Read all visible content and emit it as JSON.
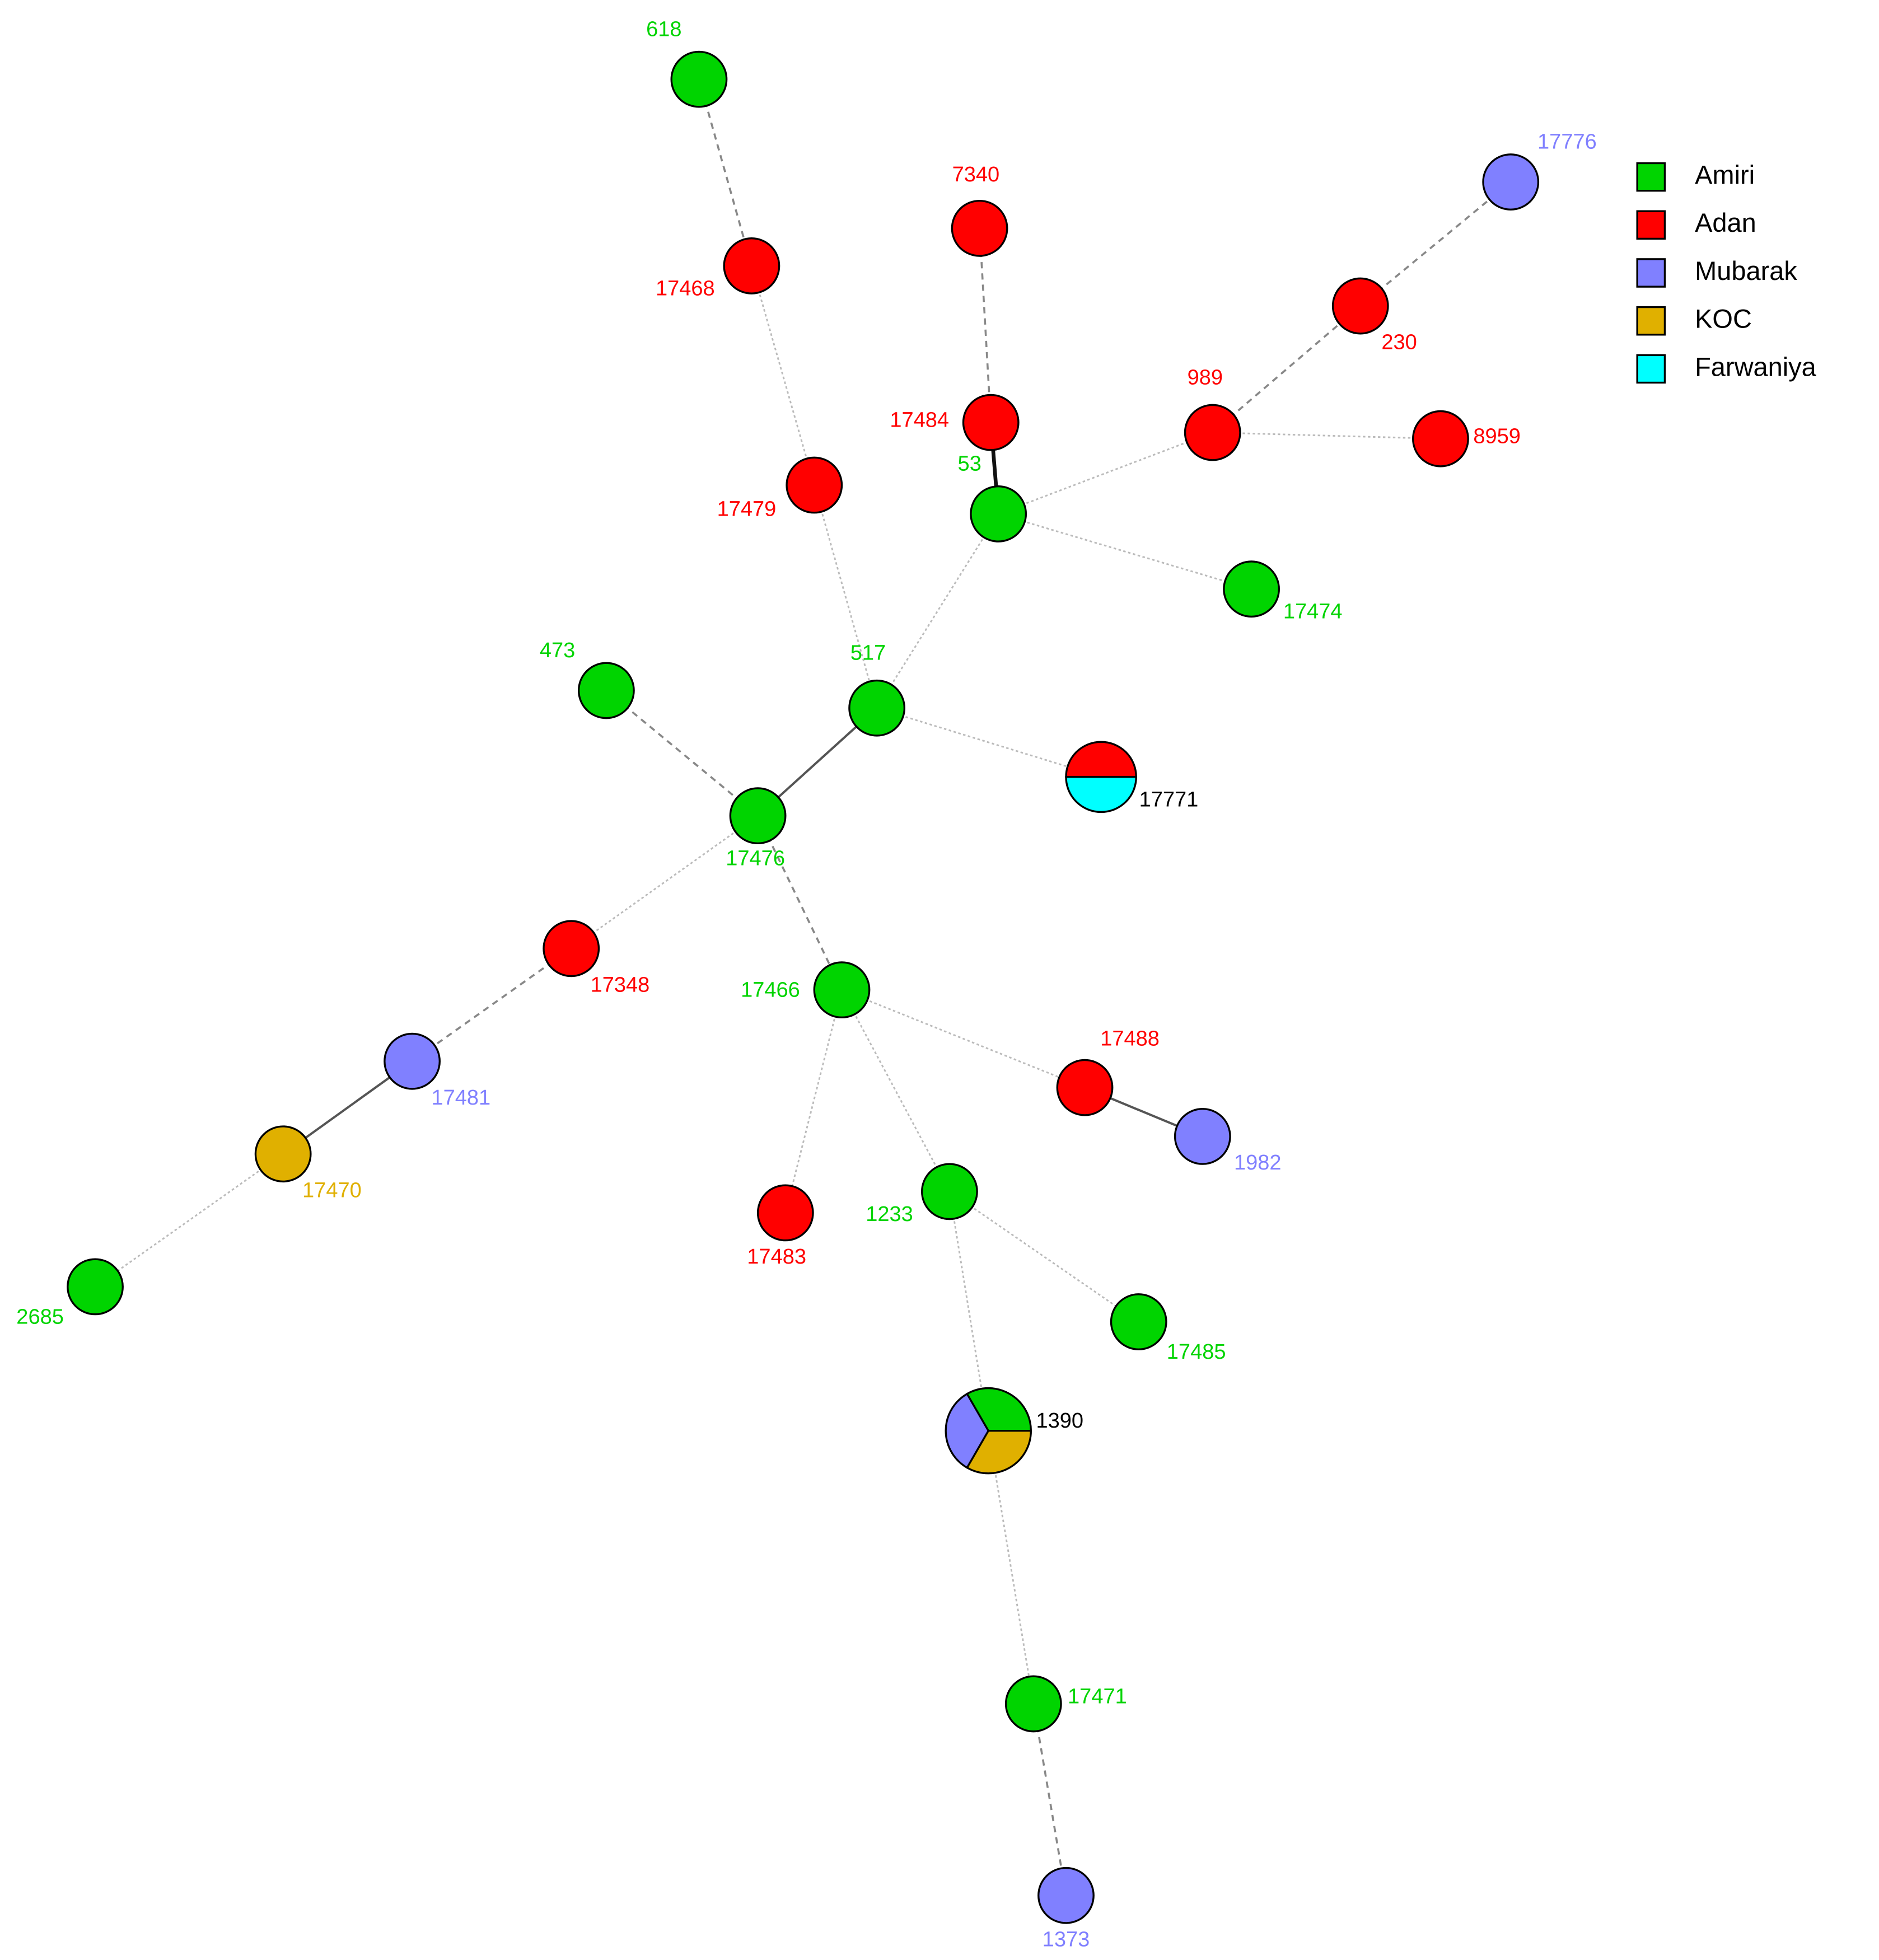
{
  "legend": [
    {
      "label": "Amiri",
      "color": "#00d400"
    },
    {
      "label": "Adan",
      "color": "#ff0000"
    },
    {
      "label": "Mubarak",
      "color": "#8080ff"
    },
    {
      "label": "KOC",
      "color": "#e0b000"
    },
    {
      "label": "Farwaniya",
      "color": "#00ffff"
    }
  ],
  "nodes": [
    {
      "label": "618"
    },
    {
      "label": "17468"
    },
    {
      "label": "7340"
    },
    {
      "label": "17484"
    },
    {
      "label": "53"
    },
    {
      "label": "17479"
    },
    {
      "label": "989"
    },
    {
      "label": "230"
    },
    {
      "label": "17776"
    },
    {
      "label": "8959"
    },
    {
      "label": "17474"
    },
    {
      "label": "473"
    },
    {
      "label": "517"
    },
    {
      "label": "17771"
    },
    {
      "label": "17476"
    },
    {
      "label": "17348"
    },
    {
      "label": "17466"
    },
    {
      "label": "17481"
    },
    {
      "label": "17488"
    },
    {
      "label": "1982"
    },
    {
      "label": "17470"
    },
    {
      "label": "17483"
    },
    {
      "label": "1233"
    },
    {
      "label": "2685"
    },
    {
      "label": "17485"
    },
    {
      "label": "1390"
    },
    {
      "label": "17471"
    },
    {
      "label": "1373"
    }
  ]
}
